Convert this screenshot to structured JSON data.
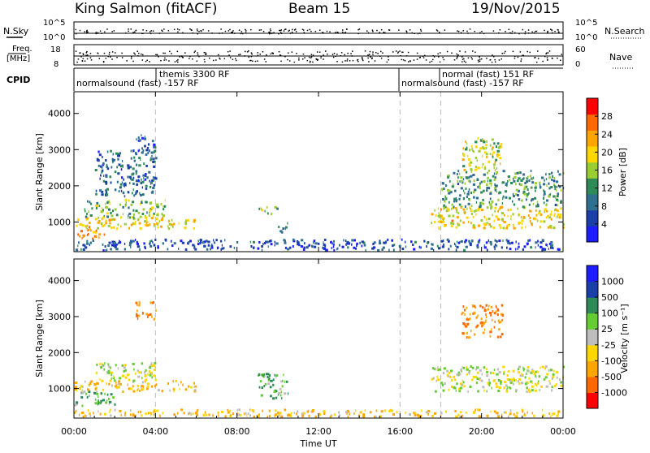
{
  "header": {
    "station": "King Salmon (fitACF)",
    "beam": "Beam 15",
    "date": "19/Nov/2015"
  },
  "top_panels": {
    "nsky_label": "N.Sky",
    "nsearch_label": "N.Search",
    "nsky_ticks": [
      "10^5",
      "10^0"
    ],
    "nsearch_ticks": [
      "10^5",
      "10^0"
    ],
    "freq_label_1": "Freq.",
    "freq_label_2": "[MHz]",
    "freq_ticks": [
      "18",
      "8"
    ],
    "nave_label": "Nave",
    "nave_ticks": [
      "60",
      "0"
    ],
    "cpid_label": "CPID",
    "cpid_segments": [
      "normalsound (fast) -157 RF",
      "themis 3300 RF",
      "normalsound (fast) -157 RF",
      "normal (fast) 151 RF"
    ]
  },
  "chart_data": [
    {
      "type": "heatmap",
      "quantity": "Power",
      "ylabel": "Slant Range [km]",
      "xlabel": "Time UT",
      "colorbar_label": "Power [dB]",
      "colorbar_ticks": [
        4,
        8,
        12,
        16,
        20,
        24,
        28
      ],
      "colorbar_range": [
        0,
        32
      ],
      "colors": [
        "#1d1dff",
        "#1a3fa8",
        "#2f6f8f",
        "#2e8b57",
        "#9acd32",
        "#ffd700",
        "#ffa500",
        "#ff6a00",
        "#ff0000"
      ],
      "xlim": [
        "00:00",
        "00:00 (+1 day)"
      ],
      "ylim": [
        180,
        4600
      ],
      "yticks": [
        1000,
        2000,
        3000,
        4000
      ],
      "echo_regions": [
        {
          "t_start": "00:00",
          "t_end": "01:30",
          "range_km": [
            500,
            800
          ],
          "power_db": 24
        },
        {
          "t_start": "00:00",
          "t_end": "06:00",
          "range_km": [
            800,
            1100
          ],
          "power_db": 20
        },
        {
          "t_start": "00:30",
          "t_end": "04:30",
          "range_km": [
            1100,
            1600
          ],
          "power_db": 14
        },
        {
          "t_start": "01:00",
          "t_end": "04:00",
          "range_km": [
            1700,
            3000
          ],
          "power_db": 8
        },
        {
          "t_start": "03:00",
          "t_end": "04:00",
          "range_km": [
            2900,
            3400
          ],
          "power_db": 6
        },
        {
          "t_start": "09:00",
          "t_end": "10:00",
          "range_km": [
            1200,
            1400
          ],
          "power_db": 14
        },
        {
          "t_start": "10:00",
          "t_end": "10:30",
          "range_km": [
            700,
            1000
          ],
          "power_db": 12
        },
        {
          "t_start": "00:00",
          "t_end": "24:00",
          "range_km": [
            200,
            500
          ],
          "power_db": 6
        },
        {
          "t_start": "17:30",
          "t_end": "24:00",
          "range_km": [
            800,
            1400
          ],
          "power_db": 20
        },
        {
          "t_start": "18:00",
          "t_end": "24:00",
          "range_km": [
            1400,
            2400
          ],
          "power_db": 12
        },
        {
          "t_start": "19:00",
          "t_end": "21:00",
          "range_km": [
            2400,
            3300
          ],
          "power_db": 18
        }
      ]
    },
    {
      "type": "heatmap",
      "quantity": "Velocity",
      "ylabel": "Slant Range [km]",
      "xlabel": "Time UT",
      "colorbar_label": "Velocity [m s⁻¹]",
      "colorbar_ticks": [
        "1000",
        "500",
        "100",
        "25",
        "-25",
        "-100",
        "-500",
        "-1000"
      ],
      "colors": [
        "#1d1dff",
        "#1a3fa8",
        "#2e8b57",
        "#66cc33",
        "#bdbdbd",
        "#ffd700",
        "#ffa500",
        "#ff6a00",
        "#ff0000"
      ],
      "xlim": [
        "00:00",
        "00:00 (+1 day)"
      ],
      "ylim": [
        180,
        4600
      ],
      "yticks": [
        1000,
        2000,
        3000,
        4000
      ],
      "xticks": [
        "00:00",
        "04:00",
        "08:00",
        "12:00",
        "16:00",
        "20:00",
        "00:00"
      ],
      "echo_regions": [
        {
          "t_start": "00:00",
          "t_end": "02:00",
          "range_km": [
            500,
            900
          ],
          "velocity": 100
        },
        {
          "t_start": "00:00",
          "t_end": "06:00",
          "range_km": [
            900,
            1200
          ],
          "velocity": -100
        },
        {
          "t_start": "01:00",
          "t_end": "04:00",
          "range_km": [
            1200,
            1700
          ],
          "velocity": 0
        },
        {
          "t_start": "03:00",
          "t_end": "04:00",
          "range_km": [
            2900,
            3400
          ],
          "velocity": -500
        },
        {
          "t_start": "09:00",
          "t_end": "10:30",
          "range_km": [
            700,
            1400
          ],
          "velocity": 100
        },
        {
          "t_start": "00:00",
          "t_end": "24:00",
          "range_km": [
            200,
            400
          ],
          "velocity": -100
        },
        {
          "t_start": "17:30",
          "t_end": "24:00",
          "range_km": [
            900,
            1600
          ],
          "velocity": 0
        },
        {
          "t_start": "19:00",
          "t_end": "21:00",
          "range_km": [
            2400,
            3300
          ],
          "velocity": -500
        }
      ]
    }
  ]
}
